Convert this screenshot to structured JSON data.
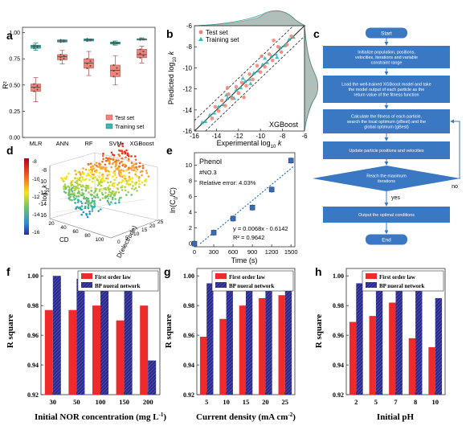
{
  "panels": {
    "a": {
      "letter": "a",
      "ylabel": "R²",
      "yticks": [
        "0.00",
        "0.25",
        "0.50",
        "0.75",
        "1.00"
      ],
      "categories": [
        "MLR",
        "ANN",
        "RF",
        "SVM",
        "XGBoost"
      ],
      "legend": [
        "Test set",
        "Training set"
      ]
    },
    "b": {
      "letter": "b",
      "xlabel": "Experimental log",
      "ylabel": "Predicted log",
      "xticks": [
        "-16",
        "-14",
        "-12",
        "-10",
        "-8",
        "-6"
      ],
      "yticks": [
        "-16",
        "-14",
        "-12",
        "-10",
        "-8",
        "-6"
      ],
      "legend": [
        "Test set",
        "Training set"
      ],
      "model": "XGBoost"
    },
    "c": {
      "letter": "c",
      "steps": [
        "Start",
        "Initialize population, positions, velocities, iterations and variable constraint range",
        "Load the well-trained XGBoost model and take the model output of each particle as the return value of the fitness function",
        "Calculate the fitness of each particle, search the local optimum (pBest) and the global optimum (gBest)",
        "Update particle positions and velocities",
        "Reach the maximum iterations",
        "Output the optimal conditions",
        "End"
      ],
      "yes": "yes",
      "no": "no"
    },
    "d": {
      "letter": "d",
      "zticks": [
        "-8",
        "-10",
        "-12",
        "-14",
        "-16"
      ],
      "zlabel": "log",
      "cd_ticks": [
        "20",
        "40",
        "60",
        "80",
        "100"
      ],
      "cd_label": "CD",
      "d_ticks": [
        "0",
        "5",
        "10",
        "15",
        "20",
        "25"
      ],
      "d_label": "D(electrode)",
      "colorbar": [
        "-8",
        "-10",
        "-12",
        "-14",
        "-16"
      ]
    },
    "e": {
      "letter": "e",
      "title": "Phenol",
      "subtitle": "#NO.3",
      "error": "Relative error: 4.03%",
      "equation": "y = 0.0068x - 0.6142",
      "r2": "R² = 0.9642",
      "xlabel": "Time (s)",
      "xticks": [
        "0",
        "300",
        "600",
        "900",
        "1200",
        "1500"
      ],
      "yticks": [
        "0",
        "2",
        "4",
        "6",
        "8",
        "10"
      ]
    },
    "f": {
      "letter": "f",
      "xlabel": "Initial NOR concentration (mg L",
      "xlabel_sup": "-1",
      "xlabel_end": ")",
      "ylabel": "R square",
      "yticks": [
        "0.92",
        "0.94",
        "0.96",
        "0.98",
        "1.00"
      ],
      "legend": [
        "First order law",
        "BP nueral network"
      ]
    },
    "g": {
      "letter": "g",
      "xlabel": "Current density (mA cm",
      "xlabel_sup": "-2",
      "xlabel_end": ")",
      "ylabel": "R square",
      "yticks": [
        "0.92",
        "0.94",
        "0.96",
        "0.98",
        "1.00"
      ],
      "legend": [
        "First order law",
        "BP nueral network"
      ]
    },
    "h": {
      "letter": "h",
      "xlabel": "Initial pH",
      "ylabel": "R square",
      "yticks": [
        "0.92",
        "0.94",
        "0.96",
        "0.98",
        "1.00"
      ],
      "legend": [
        "First order law",
        "BP nueral network"
      ]
    }
  },
  "colors": {
    "test": "#f08070",
    "training": "#2ab3b0",
    "box_test": "#f4847a",
    "box_train": "#3fb6b0",
    "flow_box": "#3a78c4",
    "first_order": "#ee2a2a",
    "bp": "#2a2a8a",
    "fit_line": "#2a6fc9",
    "marker_e": "#3b6cb3"
  },
  "chart_data": [
    {
      "panel": "a",
      "type": "box",
      "categories": [
        "MLR",
        "ANN",
        "RF",
        "SVM",
        "XGBoost"
      ],
      "ylim": [
        0,
        1.05
      ],
      "series": [
        {
          "name": "Test set",
          "stats": [
            {
              "min": 0.34,
              "q1": 0.44,
              "median": 0.48,
              "q3": 0.51,
              "max": 0.57
            },
            {
              "min": 0.7,
              "q1": 0.74,
              "median": 0.77,
              "q3": 0.79,
              "max": 0.83
            },
            {
              "min": 0.59,
              "q1": 0.66,
              "median": 0.71,
              "q3": 0.75,
              "max": 0.82
            },
            {
              "min": 0.5,
              "q1": 0.58,
              "median": 0.64,
              "q3": 0.69,
              "max": 0.78
            },
            {
              "min": 0.71,
              "q1": 0.76,
              "median": 0.79,
              "q3": 0.84,
              "max": 0.87
            }
          ]
        },
        {
          "name": "Training set",
          "stats": [
            {
              "min": 0.83,
              "q1": 0.85,
              "median": 0.87,
              "q3": 0.88,
              "max": 0.9
            },
            {
              "min": 0.91,
              "q1": 0.91,
              "median": 0.92,
              "q3": 0.93,
              "max": 0.93
            },
            {
              "min": 0.92,
              "q1": 0.92,
              "median": 0.93,
              "q3": 0.94,
              "max": 0.94
            },
            {
              "min": 0.88,
              "q1": 0.89,
              "median": 0.9,
              "q3": 0.91,
              "max": 0.92
            },
            {
              "min": 0.93,
              "q1": 0.93,
              "median": 0.94,
              "q3": 0.94,
              "max": 0.95
            }
          ]
        }
      ]
    },
    {
      "panel": "b",
      "type": "scatter",
      "xlim": [
        -16,
        -6
      ],
      "ylim": [
        -16,
        -6
      ],
      "series": [
        {
          "name": "Test set",
          "points": [
            [
              -7.2,
              -7.0
            ],
            [
              -7.6,
              -7.8
            ],
            [
              -8.1,
              -8.5
            ],
            [
              -8.4,
              -8.0
            ],
            [
              -8.9,
              -9.3
            ],
            [
              -9.2,
              -8.7
            ],
            [
              -9.6,
              -9.9
            ],
            [
              -10.0,
              -10.4
            ],
            [
              -10.3,
              -9.8
            ],
            [
              -10.7,
              -11.1
            ],
            [
              -11.0,
              -10.6
            ],
            [
              -11.3,
              -11.7
            ],
            [
              -11.7,
              -11.4
            ],
            [
              -12.0,
              -12.4
            ],
            [
              -12.2,
              -11.8
            ],
            [
              -12.6,
              -12.9
            ],
            [
              -12.9,
              -12.5
            ],
            [
              -13.2,
              -13.6
            ],
            [
              -13.5,
              -13.1
            ],
            [
              -13.8,
              -14.1
            ],
            [
              -14.1,
              -13.7
            ],
            [
              -14.4,
              -14.8
            ],
            [
              -8.8,
              -7.4
            ],
            [
              -11.5,
              -12.8
            ],
            [
              -13.0,
              -11.9
            ],
            [
              -9.9,
              -8.9
            ]
          ]
        },
        {
          "name": "Training set",
          "points": [
            [
              -7.0,
              -7.1
            ],
            [
              -7.4,
              -7.3
            ],
            [
              -7.8,
              -7.9
            ],
            [
              -8.2,
              -8.1
            ],
            [
              -8.6,
              -8.7
            ],
            [
              -9.0,
              -8.9
            ],
            [
              -9.4,
              -9.5
            ],
            [
              -9.8,
              -9.7
            ],
            [
              -10.2,
              -10.3
            ],
            [
              -10.6,
              -10.5
            ],
            [
              -11.0,
              -11.1
            ],
            [
              -11.4,
              -11.3
            ],
            [
              -11.8,
              -11.9
            ],
            [
              -12.2,
              -12.1
            ],
            [
              -12.6,
              -12.7
            ],
            [
              -13.0,
              -12.9
            ],
            [
              -13.4,
              -13.5
            ],
            [
              -13.8,
              -13.7
            ],
            [
              -14.2,
              -14.3
            ],
            [
              -14.6,
              -14.5
            ],
            [
              -15.0,
              -15.1
            ],
            [
              -15.3,
              -15.2
            ],
            [
              -9.6,
              -9.1
            ],
            [
              -10.9,
              -11.5
            ],
            [
              -12.4,
              -12.9
            ],
            [
              -13.1,
              -12.6
            ],
            [
              -11.6,
              -11.0
            ],
            [
              -8.5,
              -9.0
            ]
          ]
        }
      ]
    },
    {
      "panel": "e",
      "type": "scatter",
      "xlim": [
        0,
        1560
      ],
      "ylim": [
        -0.4,
        11.6
      ],
      "points": [
        [
          0,
          0.0
        ],
        [
          300,
          1.4
        ],
        [
          600,
          3.2
        ],
        [
          900,
          4.6
        ],
        [
          1200,
          6.9
        ],
        [
          1500,
          10.6
        ]
      ],
      "fit": {
        "slope": 0.0068,
        "intercept": -0.6142
      }
    },
    {
      "panel": "f",
      "type": "bar",
      "categories": [
        "30",
        "50",
        "100",
        "150",
        "200"
      ],
      "ylim": [
        0.92,
        1.005
      ],
      "series": [
        {
          "name": "First order law",
          "values": [
            0.977,
            0.977,
            0.98,
            0.97,
            0.98
          ]
        },
        {
          "name": "BP nueral network",
          "values": [
            1.0,
            0.998,
            0.997,
            0.997,
            0.943
          ]
        }
      ]
    },
    {
      "panel": "g",
      "type": "bar",
      "categories": [
        "5",
        "10",
        "15",
        "20",
        "25"
      ],
      "ylim": [
        0.92,
        1.005
      ],
      "series": [
        {
          "name": "First order law",
          "values": [
            0.959,
            0.971,
            0.98,
            0.985,
            0.987
          ]
        },
        {
          "name": "BP nueral network",
          "values": [
            0.995,
            0.993,
            0.996,
            1.0,
            0.992
          ]
        }
      ]
    },
    {
      "panel": "h",
      "type": "bar",
      "categories": [
        "2",
        "5",
        "7",
        "8",
        "10"
      ],
      "ylim": [
        0.92,
        1.005
      ],
      "series": [
        {
          "name": "First order law",
          "values": [
            0.969,
            0.973,
            0.982,
            0.958,
            0.952
          ]
        },
        {
          "name": "BP nueral network",
          "values": [
            0.995,
            0.996,
            0.996,
            0.991,
            0.985
          ]
        }
      ]
    }
  ]
}
